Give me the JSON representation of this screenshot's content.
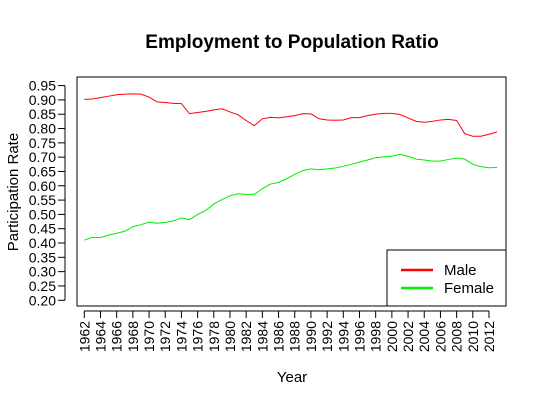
{
  "chart_data": {
    "type": "line",
    "title": "Employment to Population Ratio",
    "xlabel": "Year",
    "ylabel": "Participation Rate",
    "xlim": [
      1961.1,
      2014.1
    ],
    "ylim": [
      0.18,
      0.98
    ],
    "x_ticks": [
      1962,
      1964,
      1966,
      1968,
      1970,
      1972,
      1974,
      1976,
      1978,
      1980,
      1982,
      1984,
      1986,
      1988,
      1990,
      1992,
      1994,
      1996,
      1998,
      2000,
      2002,
      2004,
      2006,
      2008,
      2010,
      2012
    ],
    "y_ticks": [
      "0.20",
      "0.25",
      "0.30",
      "0.35",
      "0.40",
      "0.45",
      "0.50",
      "0.55",
      "0.60",
      "0.65",
      "0.70",
      "0.75",
      "0.80",
      "0.85",
      "0.90",
      "0.95"
    ],
    "grid": false,
    "legend_position": "bottom-right",
    "x": [
      1962,
      1963,
      1964,
      1965,
      1966,
      1967,
      1968,
      1969,
      1970,
      1971,
      1972,
      1973,
      1974,
      1975,
      1976,
      1977,
      1978,
      1979,
      1980,
      1981,
      1982,
      1983,
      1984,
      1985,
      1986,
      1987,
      1988,
      1989,
      1990,
      1991,
      1992,
      1993,
      1994,
      1995,
      1996,
      1997,
      1998,
      1999,
      2000,
      2001,
      2002,
      2003,
      2004,
      2005,
      2006,
      2007,
      2008,
      2009,
      2010,
      2011,
      2012,
      2013
    ],
    "series": [
      {
        "name": "Male",
        "color": "#ff0000",
        "values": [
          0.902,
          0.903,
          0.908,
          0.913,
          0.918,
          0.92,
          0.921,
          0.92,
          0.91,
          0.893,
          0.891,
          0.888,
          0.887,
          0.852,
          0.856,
          0.86,
          0.865,
          0.869,
          0.858,
          0.848,
          0.828,
          0.81,
          0.834,
          0.839,
          0.837,
          0.841,
          0.845,
          0.852,
          0.851,
          0.834,
          0.83,
          0.829,
          0.83,
          0.838,
          0.838,
          0.845,
          0.85,
          0.853,
          0.853,
          0.849,
          0.837,
          0.825,
          0.822,
          0.825,
          0.83,
          0.832,
          0.828,
          0.782,
          0.773,
          0.773,
          0.78,
          0.788
        ]
      },
      {
        "name": "Female",
        "color": "#00ee00",
        "values": [
          0.41,
          0.42,
          0.419,
          0.428,
          0.434,
          0.441,
          0.457,
          0.464,
          0.473,
          0.469,
          0.472,
          0.477,
          0.488,
          0.482,
          0.5,
          0.514,
          0.536,
          0.552,
          0.565,
          0.572,
          0.57,
          0.57,
          0.59,
          0.606,
          0.612,
          0.625,
          0.64,
          0.653,
          0.659,
          0.656,
          0.659,
          0.662,
          0.668,
          0.675,
          0.683,
          0.69,
          0.698,
          0.701,
          0.703,
          0.71,
          0.703,
          0.693,
          0.69,
          0.686,
          0.686,
          0.692,
          0.697,
          0.693,
          0.675,
          0.667,
          0.663,
          0.664
        ]
      }
    ]
  }
}
